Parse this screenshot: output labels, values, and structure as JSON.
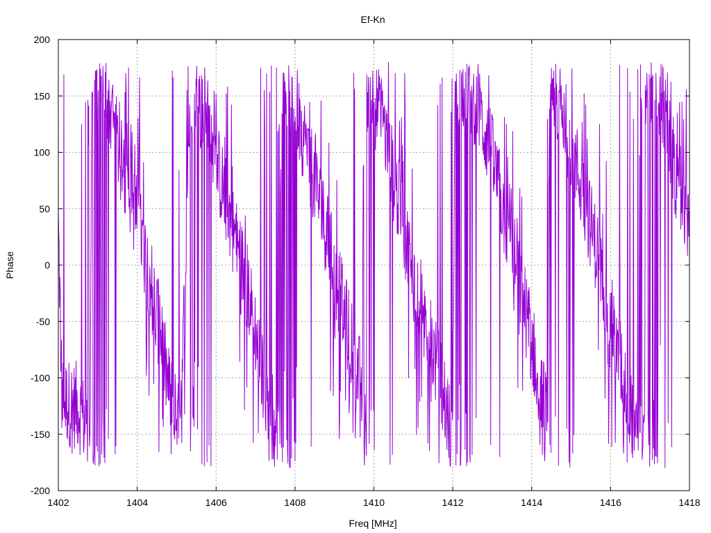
{
  "chart_data": {
    "type": "line",
    "title": "Ef-Kn",
    "xlabel": "Freq [MHz]",
    "ylabel": "Phase",
    "xlim": [
      1402,
      1418
    ],
    "ylim": [
      -200,
      200
    ],
    "xticks": [
      1402,
      1404,
      1406,
      1408,
      1410,
      1412,
      1414,
      1416,
      1418
    ],
    "yticks": [
      -200,
      -150,
      -100,
      -50,
      0,
      50,
      100,
      150,
      200
    ],
    "grid": true,
    "legend": "none",
    "series": [
      {
        "color": "#9400d3",
        "trend_x": [
          1402.0,
          1402.1,
          1402.5,
          1402.8,
          1402.85,
          1403.2,
          1403.6,
          1404.0,
          1404.4,
          1404.8,
          1405.1,
          1405.35,
          1405.8,
          1406.3,
          1406.8,
          1407.2,
          1407.6,
          1407.65,
          1408.1,
          1408.6,
          1409.1,
          1409.7,
          1409.75,
          1410.2,
          1410.6,
          1411.0,
          1411.4,
          1411.8,
          1412.0,
          1412.05,
          1412.4,
          1412.9,
          1413.4,
          1413.9,
          1414.4,
          1414.45,
          1414.9,
          1415.4,
          1415.8,
          1416.2,
          1416.6,
          1416.85,
          1416.9,
          1417.2,
          1417.6,
          1418.0
        ],
        "trend_y": [
          35,
          -120,
          -125,
          -150,
          170,
          155,
          90,
          40,
          -20,
          -110,
          -150,
          160,
          120,
          50,
          -20,
          -100,
          -160,
          175,
          130,
          60,
          -20,
          -110,
          160,
          130,
          60,
          -10,
          -60,
          -120,
          -160,
          160,
          160,
          110,
          30,
          -50,
          -140,
          170,
          120,
          50,
          -10,
          -80,
          -140,
          -165,
          170,
          160,
          90,
          20
        ],
        "noise": 40,
        "wrap_probability": 0.2
      }
    ]
  }
}
